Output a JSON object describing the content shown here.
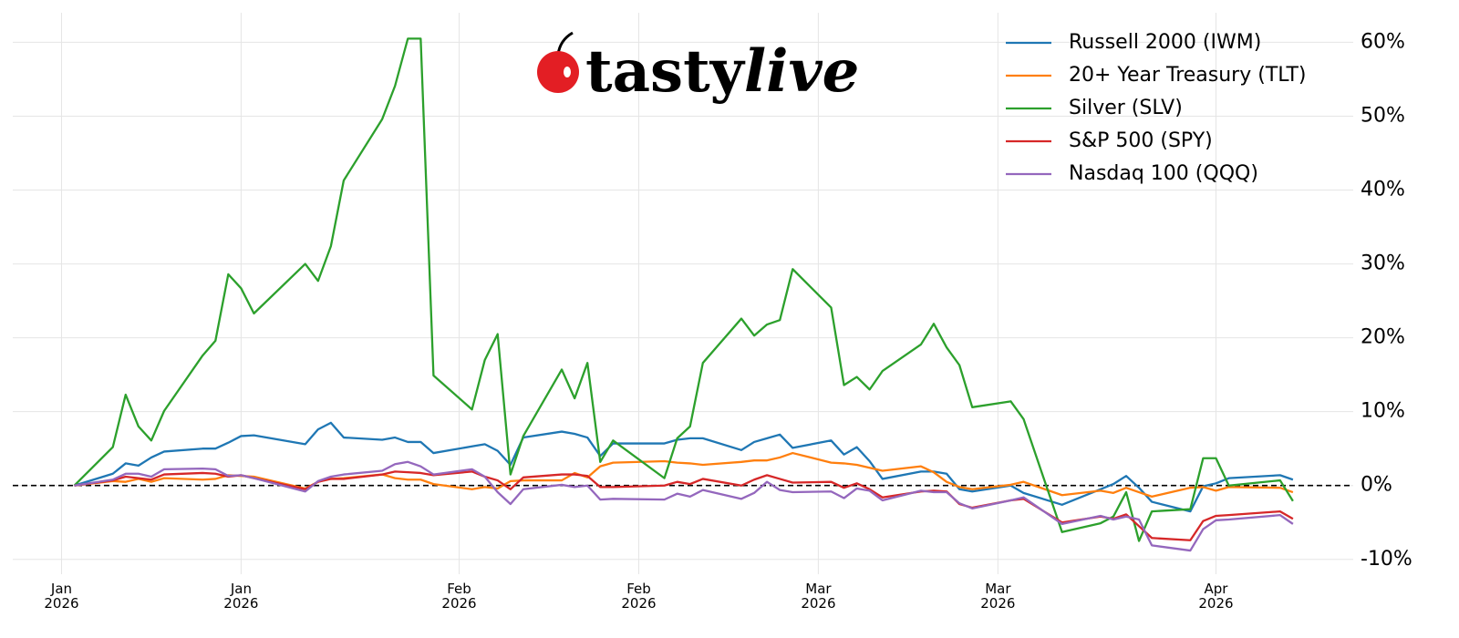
{
  "chart_data": {
    "type": "line",
    "watermark": {
      "text": "tasty",
      "italic": "live"
    },
    "x": [
      1,
      4,
      5,
      6,
      7,
      8,
      11,
      12,
      13,
      14,
      15,
      19,
      20,
      21,
      22,
      25,
      26,
      27,
      28,
      29,
      32,
      33,
      34,
      35,
      36,
      39,
      40,
      41,
      42,
      43,
      47,
      48,
      49,
      50,
      53,
      54,
      55,
      56,
      57,
      60,
      61,
      62,
      63,
      64,
      67,
      68,
      69,
      70,
      71,
      74,
      75,
      78,
      81,
      82,
      83,
      84,
      85,
      88,
      89,
      90,
      91,
      95,
      96
    ],
    "xlim": [
      -3.8,
      100.7
    ],
    "xticks": [
      {
        "value": 0,
        "label": "Jan\n2026"
      },
      {
        "value": 14,
        "label": "Jan\n2026"
      },
      {
        "value": 31,
        "label": "Feb\n2026"
      },
      {
        "value": 45,
        "label": "Feb\n2026"
      },
      {
        "value": 59,
        "label": "Mar\n2026"
      },
      {
        "value": 73,
        "label": "Mar\n2026"
      },
      {
        "value": 90,
        "label": "Apr\n2026"
      }
    ],
    "ylim": [
      -12,
      64
    ],
    "yticks": [
      {
        "value": -10,
        "label": "-10%"
      },
      {
        "value": 0,
        "label": "0%"
      },
      {
        "value": 10,
        "label": "10%"
      },
      {
        "value": 20,
        "label": "20%"
      },
      {
        "value": 30,
        "label": "30%"
      },
      {
        "value": 40,
        "label": "40%"
      },
      {
        "value": 50,
        "label": "50%"
      },
      {
        "value": 60,
        "label": "60%"
      }
    ],
    "grid": true,
    "zero_line": true,
    "legend": "upper right",
    "series": [
      {
        "name": "Russell 2000 (IWM)",
        "color": "#1f77b4",
        "values": [
          0,
          1.6,
          3.0,
          2.7,
          3.8,
          4.6,
          5.0,
          5.0,
          5.8,
          6.7,
          6.8,
          5.6,
          7.6,
          8.5,
          6.5,
          6.2,
          6.5,
          5.9,
          5.9,
          4.4,
          5.3,
          5.6,
          4.7,
          2.8,
          6.5,
          7.3,
          7.0,
          6.5,
          4.0,
          5.7,
          5.7,
          6.2,
          6.4,
          6.4,
          4.8,
          5.9,
          6.4,
          6.9,
          5.1,
          6.1,
          4.2,
          5.2,
          3.3,
          0.9,
          1.9,
          1.9,
          1.6,
          -0.5,
          -0.8,
          0.0,
          -1.0,
          -2.6,
          -0.5,
          0.2,
          1.3,
          -0.3,
          -2.2,
          -3.5,
          -0.1,
          0.3,
          1.0,
          1.4,
          0.8
        ]
      },
      {
        "name": "20+ Year Treasury (TLT)",
        "color": "#ff7f0e",
        "values": [
          0,
          0.6,
          0.5,
          0.9,
          0.5,
          1.0,
          0.8,
          0.9,
          1.4,
          1.3,
          1.2,
          -0.4,
          0.5,
          0.9,
          1.0,
          1.5,
          1.0,
          0.8,
          0.8,
          0.2,
          -0.5,
          -0.2,
          -0.4,
          0.6,
          0.7,
          0.7,
          1.7,
          1.1,
          2.6,
          3.1,
          3.3,
          3.1,
          3.0,
          2.8,
          3.2,
          3.4,
          3.4,
          3.8,
          4.4,
          3.1,
          3.0,
          2.8,
          2.4,
          2.0,
          2.6,
          1.8,
          0.5,
          -0.2,
          -0.5,
          0.1,
          0.5,
          -1.3,
          -0.7,
          -1.0,
          -0.3,
          -0.9,
          -1.5,
          -0.3,
          -0.2,
          -0.7,
          -0.2,
          -0.3,
          -0.9
        ]
      },
      {
        "name": "Silver (SLV)",
        "color": "#2ca02c",
        "values": [
          0,
          5.2,
          12.3,
          8.0,
          6.1,
          10.1,
          17.6,
          19.6,
          28.6,
          26.7,
          23.3,
          30.0,
          27.7,
          32.4,
          41.3,
          49.6,
          54.1,
          60.5,
          60.5,
          14.9,
          10.3,
          17.0,
          20.5,
          1.5,
          6.7,
          15.7,
          11.8,
          16.6,
          3.2,
          6.1,
          1.0,
          6.4,
          8.0,
          16.6,
          22.6,
          20.3,
          21.8,
          22.4,
          29.3,
          24.1,
          13.6,
          14.7,
          13.0,
          15.5,
          19.1,
          21.9,
          18.7,
          16.3,
          10.6,
          11.4,
          9.0,
          -6.3,
          -5.1,
          -4.2,
          -0.9,
          -7.5,
          -3.5,
          -3.2,
          3.7,
          3.7,
          0,
          0.7,
          -2.1
        ]
      },
      {
        "name": "S&P 500 (SPY)",
        "color": "#d62728",
        "values": [
          0,
          0.7,
          1.2,
          1.0,
          0.8,
          1.5,
          1.7,
          1.6,
          1.2,
          1.4,
          1.0,
          -0.5,
          0.5,
          0.9,
          0.9,
          1.5,
          1.9,
          1.8,
          1.7,
          1.4,
          1.9,
          1.2,
          0.7,
          -0.5,
          1.1,
          1.5,
          1.5,
          1.3,
          -0.2,
          -0.2,
          0.0,
          0.5,
          0.2,
          0.9,
          0.0,
          0.8,
          1.4,
          0.9,
          0.4,
          0.5,
          -0.3,
          0.3,
          -0.5,
          -1.6,
          -0.8,
          -0.7,
          -0.8,
          -2.5,
          -3.0,
          -2.0,
          -1.8,
          -5.0,
          -4.2,
          -4.5,
          -3.9,
          -5.5,
          -7.1,
          -7.4,
          -4.8,
          -4.1,
          -4.0,
          -3.5,
          -4.5
        ]
      },
      {
        "name": "Nasdaq 100 (QQQ)",
        "color": "#9467bd",
        "values": [
          0,
          0.8,
          1.6,
          1.6,
          1.2,
          2.2,
          2.3,
          2.2,
          1.3,
          1.4,
          1.0,
          -0.8,
          0.6,
          1.2,
          1.5,
          2.0,
          2.9,
          3.2,
          2.6,
          1.5,
          2.2,
          1.2,
          -0.9,
          -2.5,
          -0.5,
          0.1,
          -0.2,
          0.0,
          -1.9,
          -1.8,
          -1.9,
          -1.1,
          -1.5,
          -0.6,
          -1.8,
          -1.0,
          0.5,
          -0.6,
          -0.9,
          -0.8,
          -1.7,
          -0.4,
          -0.7,
          -2.0,
          -0.7,
          -0.9,
          -0.9,
          -2.4,
          -3.1,
          -2.0,
          -1.6,
          -5.2,
          -4.1,
          -4.6,
          -4.2,
          -4.6,
          -8.1,
          -8.8,
          -5.9,
          -4.7,
          -4.6,
          -4.0,
          -5.2
        ]
      }
    ]
  }
}
